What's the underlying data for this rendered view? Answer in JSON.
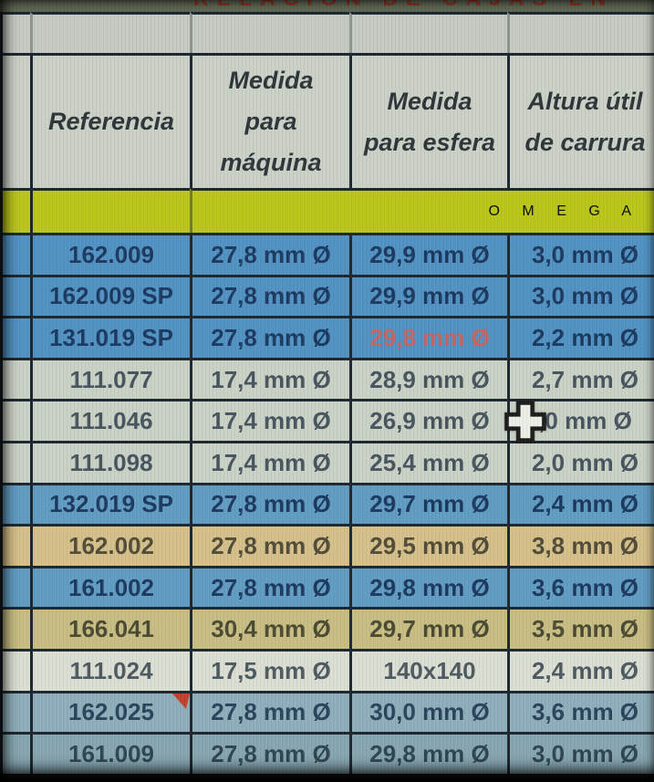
{
  "title": {
    "clipped_text": "RELACIÓN DE CAJAS EN",
    "color": "#8e2c1a"
  },
  "header": {
    "referencia": "Referencia",
    "maquina": "Medida\npara\nmáquina",
    "esfera": "Medida\npara esfera",
    "altura": "Altura útil\nde carrura"
  },
  "brand_row": {
    "label": "O M E G A",
    "background": "#bac712"
  },
  "table": {
    "rows": [
      {
        "ref": "162.009",
        "maquina": "27,8 mm Ø",
        "esfera": "29,9 mm Ø",
        "altura": "3,0 mm Ø",
        "tone": "blue"
      },
      {
        "ref": "162.009 SP",
        "maquina": "27,8 mm Ø",
        "esfera": "29,9 mm Ø",
        "altura": "3,0 mm Ø",
        "tone": "blue"
      },
      {
        "ref": "131.019 SP",
        "maquina": "27,8 mm Ø",
        "esfera": "29,8 mm Ø",
        "altura": "2,2 mm Ø",
        "tone": "blue",
        "esfera_red": true
      },
      {
        "ref": "111.077",
        "maquina": "17,4 mm Ø",
        "esfera": "28,9 mm Ø",
        "altura": "2,7 mm Ø",
        "tone": "light"
      },
      {
        "ref": "111.046",
        "maquina": "17,4 mm Ø",
        "esfera": "26,9 mm Ø",
        "altura": ",0 mm Ø",
        "tone": "light",
        "cursor": true
      },
      {
        "ref": "111.098",
        "maquina": "17,4 mm Ø",
        "esfera": "25,4 mm Ø",
        "altura": "2,0 mm Ø",
        "tone": "light"
      },
      {
        "ref": "132.019 SP",
        "maquina": "27,8 mm Ø",
        "esfera": "29,7 mm Ø",
        "altura": "2,4 mm Ø",
        "tone": "blue2"
      },
      {
        "ref": "162.002",
        "maquina": "27,8 mm Ø",
        "esfera": "29,5 mm Ø",
        "altura": "3,8 mm Ø",
        "tone": "tan"
      },
      {
        "ref": "161.002",
        "maquina": "27,8 mm Ø",
        "esfera": "29,8 mm Ø",
        "altura": "3,6 mm Ø",
        "tone": "blue2"
      },
      {
        "ref": "166.041",
        "maquina": "30,4 mm Ø",
        "esfera": "29,7 mm Ø",
        "altura": "3,5 mm Ø",
        "tone": "khaki"
      },
      {
        "ref": "111.024",
        "maquina": "17,5 mm Ø",
        "esfera": "140x140",
        "altura": "2,4 mm Ø",
        "tone": "white"
      },
      {
        "ref": "162.025",
        "maquina": "27,8 mm Ø",
        "esfera": "30,0 mm Ø",
        "altura": "3,6 mm Ø",
        "tone": "grayblue",
        "comment": true
      },
      {
        "ref": "161.009",
        "maquina": "27,8 mm Ø",
        "esfera": "29,8 mm Ø",
        "altura": "3,0 mm Ø",
        "tone": "grayblue2"
      }
    ]
  },
  "colors": {
    "border": "#151f29",
    "alert_text": "#c4605e",
    "comment_marker": "#c23a26",
    "tones": {
      "blue": {
        "bg": "#4b90c4",
        "text": "#14335c"
      },
      "blue2": {
        "bg": "#5c9ac3",
        "text": "#14335c"
      },
      "light": {
        "bg": "#cbd2c7",
        "text": "#42505a"
      },
      "tan": {
        "bg": "#d6c088",
        "text": "#4c4733"
      },
      "khaki": {
        "bg": "#c9bd80",
        "text": "#45452e"
      },
      "white": {
        "bg": "#dde1d5",
        "text": "#49555c"
      },
      "grayblue": {
        "bg": "#8cadbc",
        "text": "#223e57"
      },
      "grayblue2": {
        "bg": "#84a5b2",
        "text": "#27404d"
      }
    }
  },
  "cursor": {
    "type": "excel-cell-cursor",
    "over_row": "111.046",
    "over_column": "altura"
  },
  "comment_marker": {
    "row": "162.025",
    "column": "referencia"
  }
}
